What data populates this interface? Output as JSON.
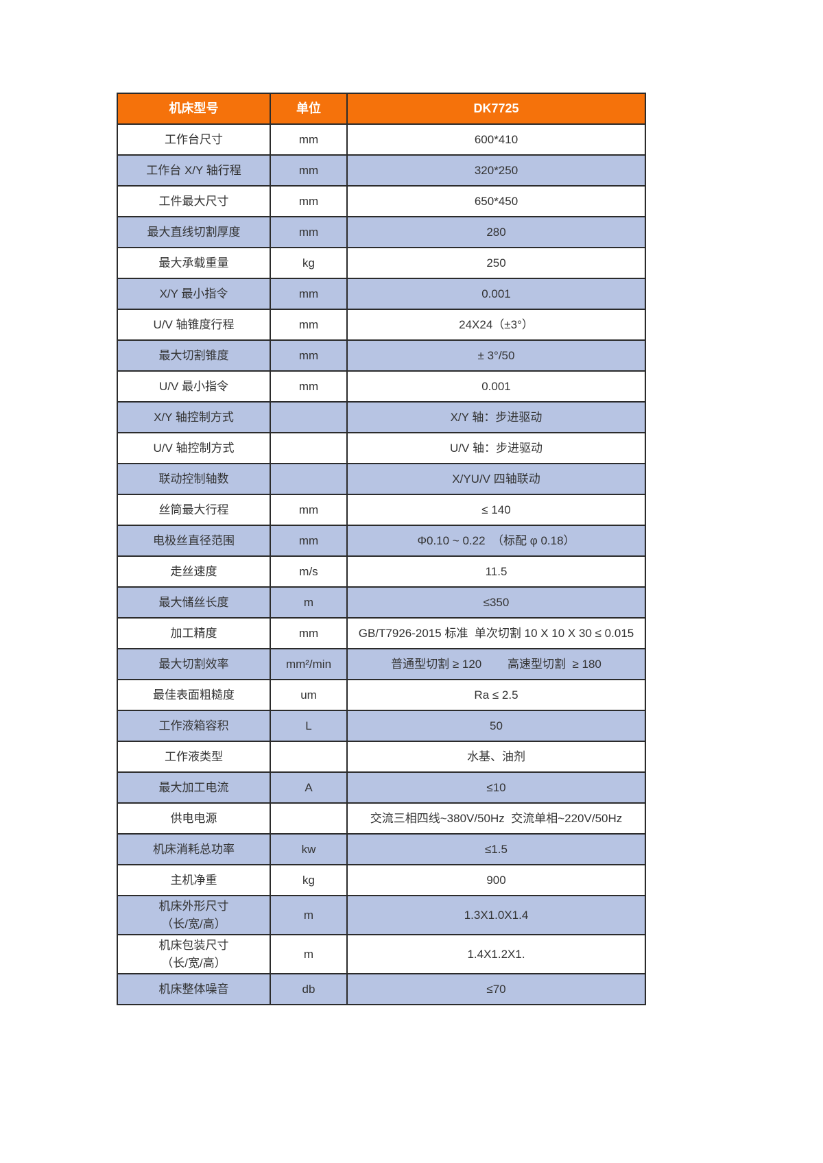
{
  "colors": {
    "header_bg": "#F5720B",
    "header_text": "#ffffff",
    "alt_row_bg": "#B7C4E3",
    "row_bg": "#ffffff",
    "border": "#2b2b2b",
    "body_text": "#333333"
  },
  "table": {
    "header": {
      "model_label": "机床型号",
      "unit_label": "单位",
      "model_value": "DK7725"
    },
    "rows": [
      {
        "label": "工作台尺寸",
        "unit": "mm",
        "value": "600*410"
      },
      {
        "label": "工作台 X/Y 轴行程",
        "unit": "mm",
        "value": "320*250"
      },
      {
        "label": "工件最大尺寸",
        "unit": "mm",
        "value": "650*450"
      },
      {
        "label": "最大直线切割厚度",
        "unit": "mm",
        "value": "280"
      },
      {
        "label": "最大承载重量",
        "unit": "kg",
        "value": "250"
      },
      {
        "label": "X/Y 最小指令",
        "unit": "mm",
        "value": "0.001"
      },
      {
        "label": "U/V 轴锥度行程",
        "unit": "mm",
        "value": "24X24（±3°）"
      },
      {
        "label": "最大切割锥度",
        "unit": "mm",
        "value": "± 3°/50"
      },
      {
        "label": "U/V 最小指令",
        "unit": "mm",
        "value": "0.001"
      },
      {
        "label": "X/Y 轴控制方式",
        "unit": "",
        "value": "X/Y 轴：步进驱动"
      },
      {
        "label": "U/V 轴控制方式",
        "unit": "",
        "value": "U/V 轴：步进驱动"
      },
      {
        "label": "联动控制轴数",
        "unit": "",
        "value": "X/YU/V 四轴联动"
      },
      {
        "label": "丝筒最大行程",
        "unit": "mm",
        "value": "≤ 140"
      },
      {
        "label": "电极丝直径范围",
        "unit": "mm",
        "value": "Φ0.10 ~ 0.22  （标配 φ 0.18）"
      },
      {
        "label": "走丝速度",
        "unit": "m/s",
        "value": "11.5"
      },
      {
        "label": "最大储丝长度",
        "unit": "m",
        "value": "≤350"
      },
      {
        "label": "加工精度",
        "unit": "mm",
        "value": "GB/T7926-2015 标准  单次切割 10 X 10 X 30 ≤ 0.015"
      },
      {
        "label": "最大切割效率",
        "unit": "mm²/min",
        "value": "普通型切割 ≥ 120        高速型切割  ≥ 180"
      },
      {
        "label": "最佳表面粗糙度",
        "unit": "um",
        "value": "Ra ≤ 2.5"
      },
      {
        "label": "工作液箱容积",
        "unit": "L",
        "value": "50"
      },
      {
        "label": "工作液类型",
        "unit": "",
        "value": "水基、油剂"
      },
      {
        "label": "最大加工电流",
        "unit": "A",
        "value": "≤10"
      },
      {
        "label": "供电电源",
        "unit": "",
        "value": "交流三相四线~380V/50Hz  交流单相~220V/50Hz"
      },
      {
        "label": "机床消耗总功率",
        "unit": "kw",
        "value": "≤1.5"
      },
      {
        "label": "主机净重",
        "unit": "kg",
        "value": "900"
      },
      {
        "label": "机床外形尺寸\n（长/宽/高）",
        "unit": "m",
        "value": "1.3X1.0X1.4"
      },
      {
        "label": "机床包装尺寸\n（长/宽/高）",
        "unit": "m",
        "value": "1.4X1.2X1."
      },
      {
        "label": "机床整体噪音",
        "unit": "db",
        "value": "≤70"
      }
    ]
  }
}
